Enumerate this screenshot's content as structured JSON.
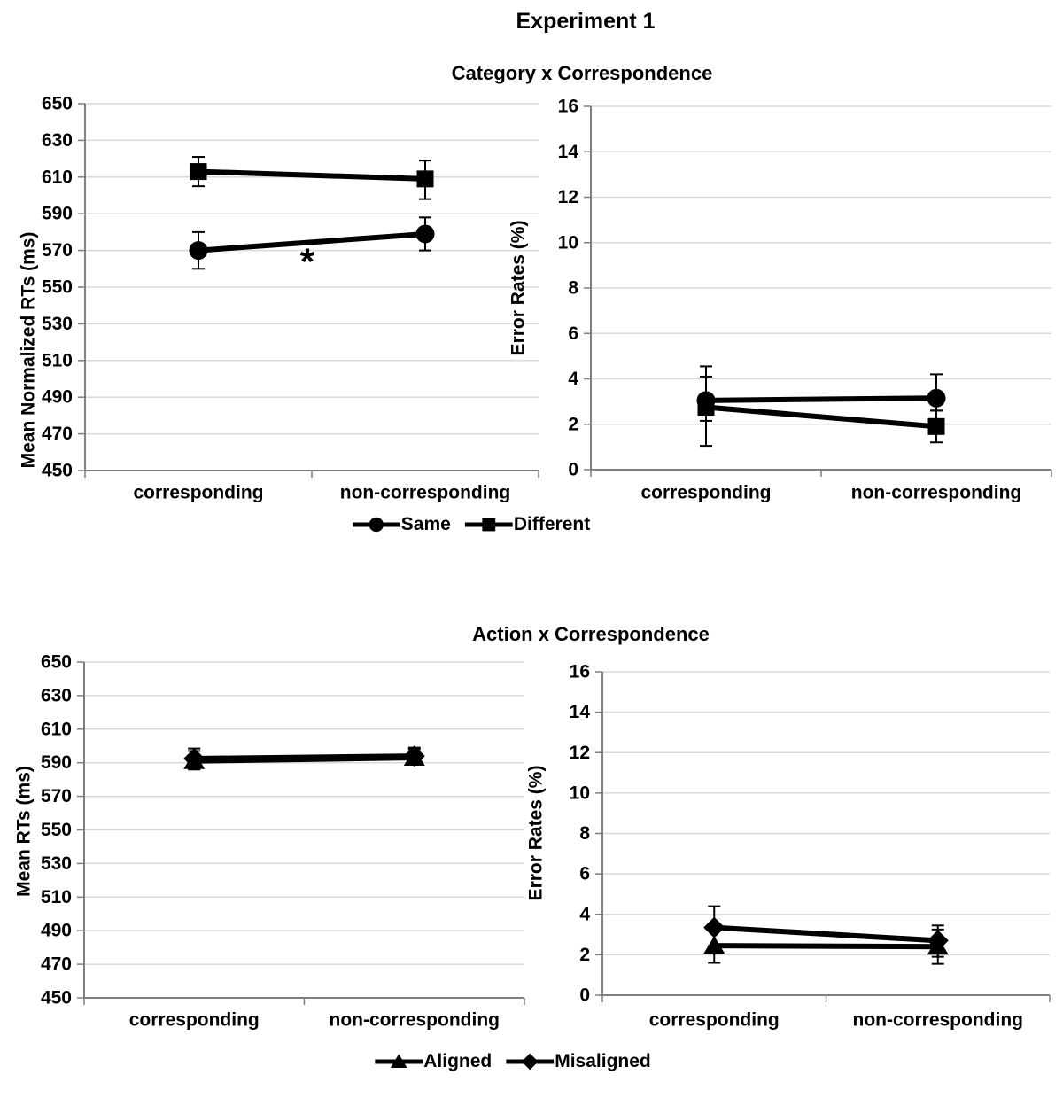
{
  "page": {
    "title": "Experiment 1"
  },
  "colors": {
    "series": "#000000",
    "gridline": "#d9d9d9",
    "axis": "#7f7f7f",
    "text": "#000000",
    "background": "#ffffff"
  },
  "sections": [
    {
      "subtitle": "Category x Correspondence",
      "legend": [
        {
          "marker": "circle",
          "label": "Same"
        },
        {
          "marker": "square",
          "label": "Different"
        }
      ]
    },
    {
      "subtitle": "Action x Correspondence",
      "legend": [
        {
          "marker": "triangle",
          "label": "Aligned"
        },
        {
          "marker": "diamond",
          "label": "Misaligned"
        }
      ]
    }
  ],
  "chart_data": [
    {
      "id": "category-rt",
      "type": "line",
      "panel_title": "Category x Correspondence",
      "xlabel": "",
      "ylabel": "Mean Normalized RTs (ms)",
      "ylim": [
        450,
        650
      ],
      "ytick_step": 20,
      "grid": true,
      "legend_position": "bottom",
      "categories": [
        "corresponding",
        "non-corresponding"
      ],
      "series": [
        {
          "name": "Different",
          "marker": "square",
          "values": [
            613,
            609
          ],
          "error_low": [
            605,
            598
          ],
          "error_high": [
            621,
            619
          ]
        },
        {
          "name": "Same",
          "marker": "circle",
          "values": [
            570,
            579
          ],
          "error_low": [
            560,
            570
          ],
          "error_high": [
            580,
            588
          ]
        }
      ],
      "annotations": [
        {
          "text": "*",
          "x_frac": 0.49,
          "y_value": 564,
          "font_size": 42
        }
      ]
    },
    {
      "id": "category-errors",
      "type": "line",
      "panel_title": "Category x Correspondence",
      "xlabel": "",
      "ylabel": "Error Rates (%)",
      "ylim": [
        0,
        16
      ],
      "ytick_step": 2,
      "grid": true,
      "legend_position": "bottom",
      "categories": [
        "corresponding",
        "non-corresponding"
      ],
      "series": [
        {
          "name": "Different",
          "marker": "square",
          "values": [
            2.75,
            1.9
          ],
          "error_low": [
            1.05,
            1.2
          ],
          "error_high": [
            4.55,
            2.6
          ]
        },
        {
          "name": "Same",
          "marker": "circle",
          "values": [
            3.05,
            3.15
          ],
          "error_low": [
            2.15,
            2.6
          ],
          "error_high": [
            4.1,
            4.2
          ]
        }
      ],
      "annotations": []
    },
    {
      "id": "action-rt",
      "type": "line",
      "panel_title": "Action x Correspondence",
      "xlabel": "",
      "ylabel": "Mean RTs (ms)",
      "ylim": [
        450,
        650
      ],
      "ytick_step": 20,
      "grid": true,
      "legend_position": "bottom",
      "categories": [
        "corresponding",
        "non-corresponding"
      ],
      "series": [
        {
          "name": "Aligned",
          "marker": "triangle",
          "values": [
            591,
            593
          ],
          "error_low": [
            586,
            589
          ],
          "error_high": [
            597,
            598
          ]
        },
        {
          "name": "Misaligned",
          "marker": "diamond",
          "values": [
            592.5,
            594
          ],
          "error_low": [
            587,
            589.5
          ],
          "error_high": [
            598.5,
            599
          ]
        }
      ],
      "annotations": []
    },
    {
      "id": "action-errors",
      "type": "line",
      "panel_title": "Action x Correspondence",
      "xlabel": "",
      "ylabel": "Error Rates (%)",
      "ylim": [
        0,
        16
      ],
      "ytick_step": 2,
      "grid": true,
      "legend_position": "bottom",
      "categories": [
        "corresponding",
        "non-corresponding"
      ],
      "series": [
        {
          "name": "Aligned",
          "marker": "triangle",
          "values": [
            2.45,
            2.4
          ],
          "error_low": [
            1.6,
            1.55
          ],
          "error_high": [
            3.25,
            3.25
          ]
        },
        {
          "name": "Misaligned",
          "marker": "diamond",
          "values": [
            3.35,
            2.7
          ],
          "error_low": [
            2.45,
            1.9
          ],
          "error_high": [
            4.4,
            3.45
          ]
        }
      ],
      "annotations": []
    }
  ]
}
